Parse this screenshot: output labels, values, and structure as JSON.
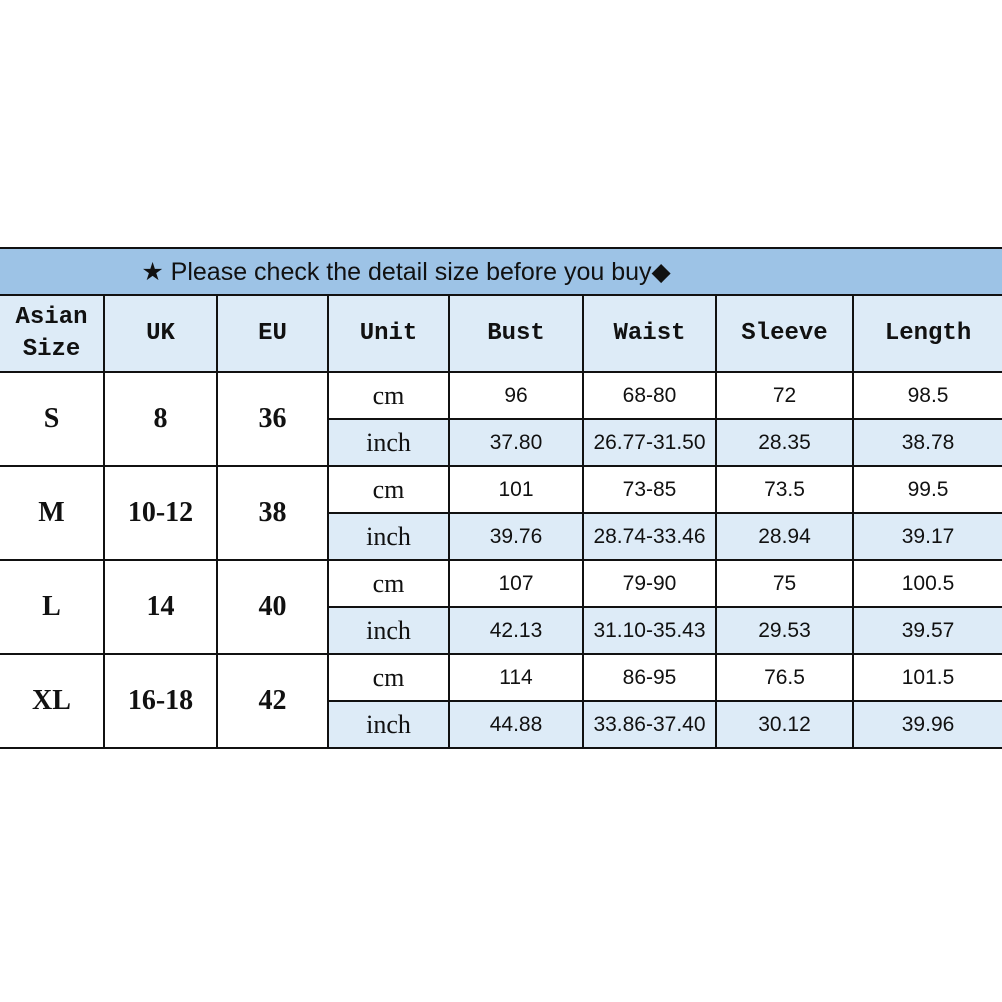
{
  "banner": {
    "text": "★ Please check the detail size before you buy◆"
  },
  "columns": [
    "Asian Size",
    "UK",
    "EU",
    "Unit",
    "Bust",
    "Waist",
    "Sleeve",
    "Length"
  ],
  "colors": {
    "banner": "#9dc3e6",
    "light_row": "#ddebf7"
  },
  "sizes": [
    {
      "asian": "S",
      "uk": "8",
      "eu": "36",
      "cm": {
        "unit": "cm",
        "bust": "96",
        "waist": "68-80",
        "sleeve": "72",
        "length": "98.5"
      },
      "inch": {
        "unit": "inch",
        "bust": "37.80",
        "waist": "26.77-31.50",
        "sleeve": "28.35",
        "length": "38.78"
      }
    },
    {
      "asian": "M",
      "uk": "10-12",
      "eu": "38",
      "cm": {
        "unit": "cm",
        "bust": "101",
        "waist": "73-85",
        "sleeve": "73.5",
        "length": "99.5"
      },
      "inch": {
        "unit": "inch",
        "bust": "39.76",
        "waist": "28.74-33.46",
        "sleeve": "28.94",
        "length": "39.17"
      }
    },
    {
      "asian": "L",
      "uk": "14",
      "eu": "40",
      "cm": {
        "unit": "cm",
        "bust": "107",
        "waist": "79-90",
        "sleeve": "75",
        "length": "100.5"
      },
      "inch": {
        "unit": "inch",
        "bust": "42.13",
        "waist": "31.10-35.43",
        "sleeve": "29.53",
        "length": "39.57"
      }
    },
    {
      "asian": "XL",
      "uk": "16-18",
      "eu": "42",
      "cm": {
        "unit": "cm",
        "bust": "114",
        "waist": "86-95",
        "sleeve": "76.5",
        "length": "101.5"
      },
      "inch": {
        "unit": "inch",
        "bust": "44.88",
        "waist": "33.86-37.40",
        "sleeve": "30.12",
        "length": "39.96"
      }
    }
  ]
}
